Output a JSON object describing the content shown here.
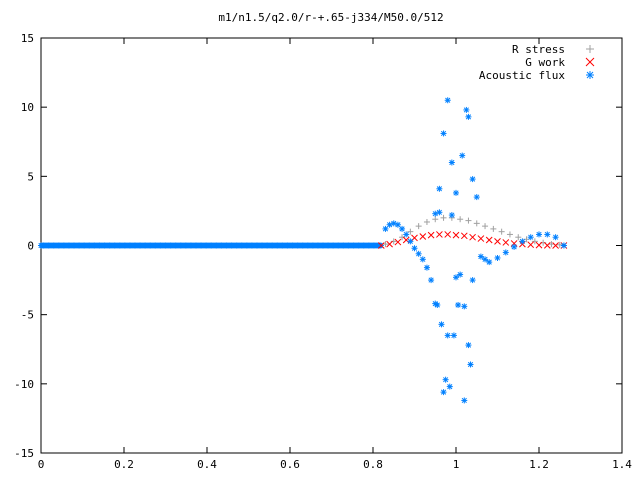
{
  "chart_data": {
    "type": "scatter",
    "title": "m1/n1.5/q2.0/r-+.65-j334/M50.0/512",
    "xlabel": "",
    "ylabel": "",
    "xlim": [
      0,
      1.4
    ],
    "ylim": [
      -15,
      15
    ],
    "xticks": [
      "0",
      "0.2",
      "0.4",
      "0.6",
      "0.8",
      "1",
      "1.2",
      "1.4"
    ],
    "yticks": [
      "15",
      "10",
      "5",
      "0",
      "-5",
      "-10",
      "-15"
    ],
    "grid": false,
    "legend_position": "top-right",
    "series": [
      {
        "name": "R stress",
        "color": "#a0a0a0",
        "marker": "plus",
        "x": [
          0.83,
          0.85,
          0.87,
          0.89,
          0.91,
          0.93,
          0.95,
          0.97,
          0.99,
          1.01,
          1.03,
          1.05,
          1.07,
          1.09,
          1.11,
          1.13,
          1.15,
          1.17,
          1.19,
          1.21,
          1.23,
          1.25,
          1.26
        ],
        "y": [
          0.1,
          0.3,
          0.6,
          1.0,
          1.4,
          1.7,
          1.9,
          2.0,
          2.0,
          1.9,
          1.8,
          1.6,
          1.4,
          1.2,
          1.0,
          0.8,
          0.6,
          0.45,
          0.3,
          0.2,
          0.1,
          0.05,
          0.0
        ]
      },
      {
        "name": "G work",
        "color": "#ff0000",
        "marker": "cross",
        "x": [
          0.82,
          0.84,
          0.86,
          0.88,
          0.9,
          0.92,
          0.94,
          0.96,
          0.98,
          1.0,
          1.02,
          1.04,
          1.06,
          1.08,
          1.1,
          1.12,
          1.14,
          1.16,
          1.18,
          1.2,
          1.22,
          1.24,
          1.26
        ],
        "y": [
          0.0,
          0.1,
          0.25,
          0.4,
          0.55,
          0.65,
          0.75,
          0.8,
          0.8,
          0.75,
          0.7,
          0.6,
          0.5,
          0.4,
          0.3,
          0.22,
          0.15,
          0.1,
          0.06,
          0.03,
          0.01,
          0.0,
          0.0
        ]
      },
      {
        "name": "Acoustic flux",
        "color": "#0080ff",
        "marker": "star",
        "x": [
          0.83,
          0.84,
          0.85,
          0.86,
          0.87,
          0.88,
          0.89,
          0.9,
          0.91,
          0.92,
          0.93,
          0.94,
          0.95,
          0.955,
          0.96,
          0.965,
          0.97,
          0.975,
          0.98,
          0.985,
          0.99,
          0.995,
          1.0,
          1.005,
          1.01,
          1.015,
          1.02,
          1.025,
          1.03,
          1.035,
          1.04,
          1.05,
          1.06,
          1.07,
          1.08,
          1.1,
          1.12,
          1.14,
          1.16,
          1.18,
          1.2,
          1.22,
          1.24,
          1.26,
          0.96,
          0.97,
          0.98,
          1.0,
          1.02,
          1.04,
          0.95,
          0.99,
          1.03
        ],
        "y": [
          1.2,
          1.5,
          1.6,
          1.5,
          1.2,
          0.8,
          0.3,
          -0.2,
          -0.6,
          -1.0,
          -1.6,
          -2.5,
          2.3,
          -4.3,
          4.1,
          -5.7,
          8.1,
          -9.7,
          10.5,
          -10.2,
          6.0,
          -6.5,
          3.8,
          -4.3,
          -2.1,
          6.5,
          -11.2,
          9.8,
          9.3,
          -8.6,
          -2.5,
          3.5,
          -0.8,
          -1.0,
          -1.2,
          -0.9,
          -0.5,
          -0.1,
          0.3,
          0.6,
          0.8,
          0.8,
          0.6,
          0.0,
          2.4,
          -10.6,
          -6.5,
          -2.3,
          -4.4,
          4.8,
          -4.2,
          2.2,
          -7.2
        ]
      }
    ]
  }
}
